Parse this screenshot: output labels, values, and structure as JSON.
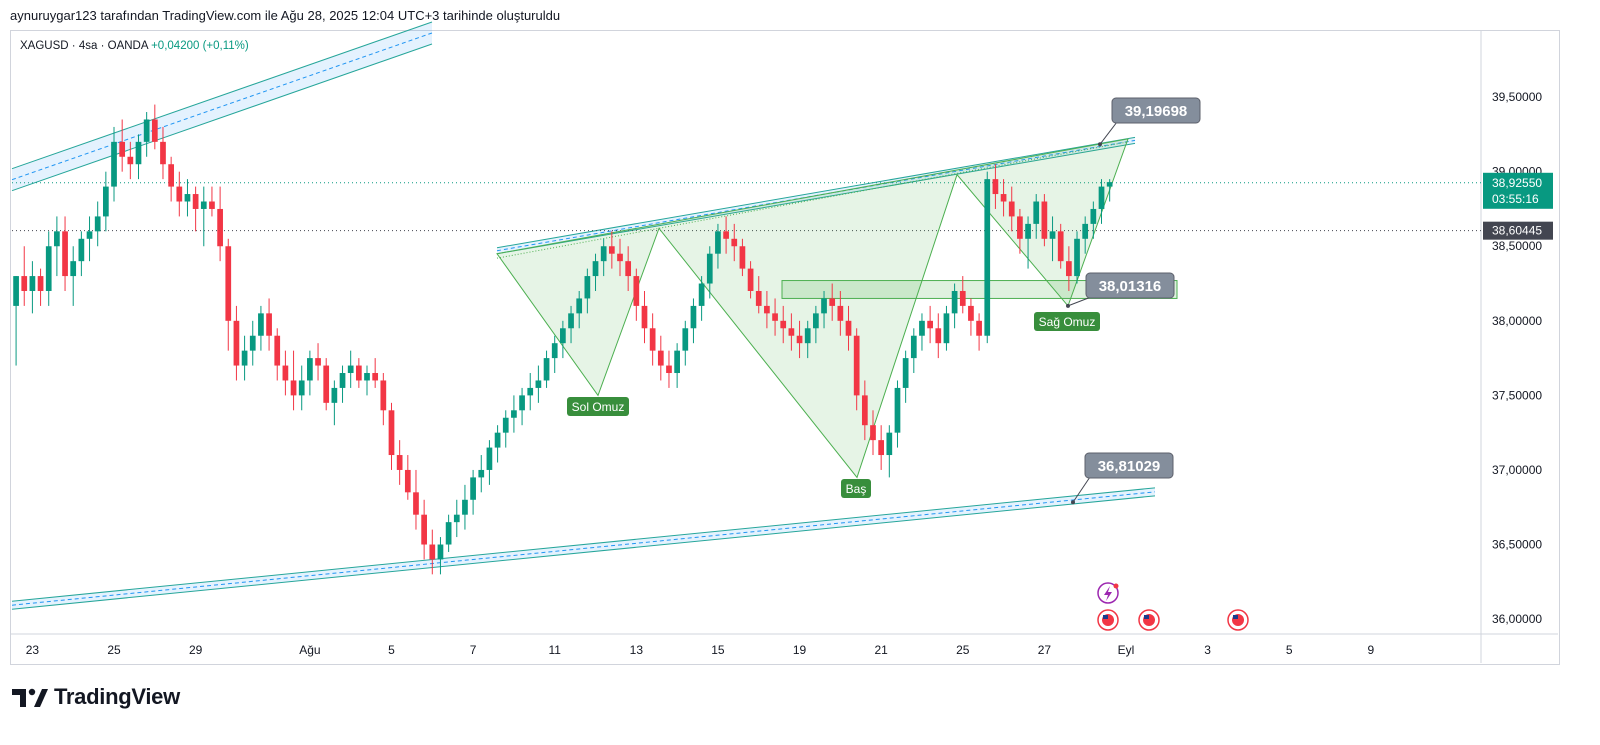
{
  "caption": "aynuruygar123 tarafından TradingView.com ile Ağu 28, 2025 12:04 UTC+3 tarihinde oluşturuldu",
  "symbol": {
    "name": "XAGUSD",
    "sep1": "·",
    "timeframe": "4sa",
    "sep2": "·",
    "broker": "OANDA",
    "change": "+0,04200 (+0,11%)"
  },
  "brand": {
    "name": "TradingView"
  },
  "colors": {
    "up": "#089981",
    "down": "#f23645",
    "pattern": "#4caf50",
    "channel": "#2196f3",
    "label": "#848e9c",
    "price_tag": "#089981"
  },
  "chart_data": {
    "type": "candlestick",
    "ylim": [
      35.9,
      39.95
    ],
    "y_ticks": [
      "36,00000",
      "36,50000",
      "37,00000",
      "37,50000",
      "38,00000",
      "38,50000",
      "39,00000",
      "39,50000"
    ],
    "y_tick_values": [
      36.0,
      36.5,
      37.0,
      37.5,
      38.0,
      38.5,
      39.0,
      39.5
    ],
    "x_ticks": [
      "23",
      "25",
      "29",
      "Ağu",
      "5",
      "7",
      "11",
      "13",
      "15",
      "19",
      "21",
      "25",
      "27",
      "Eyl",
      "3",
      "5",
      "9"
    ],
    "x_tick_index": [
      2,
      12,
      22,
      36,
      46,
      56,
      66,
      76,
      86,
      96,
      106,
      116,
      126,
      136,
      146,
      156,
      166
    ],
    "candle_count": 136,
    "candles": [
      [
        38.1,
        38.3,
        37.7,
        38.3
      ],
      [
        38.3,
        38.5,
        38.1,
        38.2
      ],
      [
        38.2,
        38.4,
        38.05,
        38.3
      ],
      [
        38.3,
        38.35,
        38.1,
        38.2
      ],
      [
        38.2,
        38.6,
        38.1,
        38.5
      ],
      [
        38.5,
        38.7,
        38.3,
        38.6
      ],
      [
        38.6,
        38.7,
        38.2,
        38.3
      ],
      [
        38.3,
        38.5,
        38.1,
        38.4
      ],
      [
        38.4,
        38.6,
        38.3,
        38.55
      ],
      [
        38.55,
        38.7,
        38.4,
        38.6
      ],
      [
        38.6,
        38.8,
        38.5,
        38.7
      ],
      [
        38.7,
        39.0,
        38.6,
        38.9
      ],
      [
        38.9,
        39.3,
        38.8,
        39.2
      ],
      [
        39.2,
        39.35,
        39.0,
        39.1
      ],
      [
        39.1,
        39.2,
        38.95,
        39.05
      ],
      [
        39.05,
        39.25,
        38.95,
        39.2
      ],
      [
        39.2,
        39.4,
        39.1,
        39.35
      ],
      [
        39.35,
        39.45,
        39.15,
        39.2
      ],
      [
        39.2,
        39.3,
        38.95,
        39.05
      ],
      [
        39.05,
        39.1,
        38.8,
        38.9
      ],
      [
        38.9,
        39.0,
        38.7,
        38.8
      ],
      [
        38.8,
        38.95,
        38.7,
        38.85
      ],
      [
        38.85,
        38.9,
        38.6,
        38.75
      ],
      [
        38.75,
        38.9,
        38.5,
        38.8
      ],
      [
        38.8,
        38.9,
        38.7,
        38.75
      ],
      [
        38.75,
        38.9,
        38.4,
        38.5
      ],
      [
        38.5,
        38.55,
        37.8,
        38.0
      ],
      [
        38.0,
        38.1,
        37.6,
        37.7
      ],
      [
        37.7,
        37.9,
        37.6,
        37.8
      ],
      [
        37.8,
        38.0,
        37.7,
        37.9
      ],
      [
        37.9,
        38.1,
        37.8,
        38.05
      ],
      [
        38.05,
        38.15,
        37.8,
        37.9
      ],
      [
        37.9,
        37.95,
        37.6,
        37.7
      ],
      [
        37.7,
        37.8,
        37.5,
        37.6
      ],
      [
        37.6,
        37.8,
        37.4,
        37.5
      ],
      [
        37.5,
        37.7,
        37.4,
        37.6
      ],
      [
        37.6,
        37.8,
        37.5,
        37.75
      ],
      [
        37.75,
        37.85,
        37.6,
        37.7
      ],
      [
        37.7,
        37.75,
        37.4,
        37.45
      ],
      [
        37.45,
        37.6,
        37.3,
        37.55
      ],
      [
        37.55,
        37.7,
        37.45,
        37.65
      ],
      [
        37.65,
        37.8,
        37.55,
        37.7
      ],
      [
        37.7,
        37.75,
        37.55,
        37.6
      ],
      [
        37.6,
        37.7,
        37.5,
        37.65
      ],
      [
        37.65,
        37.75,
        37.55,
        37.6
      ],
      [
        37.6,
        37.65,
        37.3,
        37.4
      ],
      [
        37.4,
        37.45,
        37.0,
        37.1
      ],
      [
        37.1,
        37.2,
        36.9,
        37.0
      ],
      [
        37.0,
        37.1,
        36.8,
        36.85
      ],
      [
        36.85,
        37.0,
        36.6,
        36.7
      ],
      [
        36.7,
        36.8,
        36.4,
        36.5
      ],
      [
        36.5,
        36.6,
        36.3,
        36.4
      ],
      [
        36.4,
        36.55,
        36.3,
        36.5
      ],
      [
        36.5,
        36.7,
        36.45,
        36.65
      ],
      [
        36.65,
        36.8,
        36.55,
        36.7
      ],
      [
        36.7,
        36.9,
        36.6,
        36.8
      ],
      [
        36.8,
        37.0,
        36.7,
        36.95
      ],
      [
        36.95,
        37.1,
        36.85,
        37.0
      ],
      [
        37.0,
        37.2,
        36.9,
        37.15
      ],
      [
        37.15,
        37.3,
        37.05,
        37.25
      ],
      [
        37.25,
        37.4,
        37.15,
        37.35
      ],
      [
        37.35,
        37.5,
        37.25,
        37.4
      ],
      [
        37.4,
        37.55,
        37.3,
        37.5
      ],
      [
        37.5,
        37.65,
        37.4,
        37.55
      ],
      [
        37.55,
        37.7,
        37.45,
        37.6
      ],
      [
        37.6,
        37.8,
        37.55,
        37.75
      ],
      [
        37.75,
        37.9,
        37.65,
        37.85
      ],
      [
        37.85,
        38.0,
        37.75,
        37.95
      ],
      [
        37.95,
        38.1,
        37.85,
        38.05
      ],
      [
        38.05,
        38.2,
        37.95,
        38.15
      ],
      [
        38.15,
        38.35,
        38.05,
        38.3
      ],
      [
        38.3,
        38.45,
        38.2,
        38.4
      ],
      [
        38.4,
        38.55,
        38.3,
        38.5
      ],
      [
        38.5,
        38.6,
        38.35,
        38.45
      ],
      [
        38.45,
        38.55,
        38.3,
        38.4
      ],
      [
        38.4,
        38.5,
        38.2,
        38.3
      ],
      [
        38.3,
        38.35,
        38.0,
        38.1
      ],
      [
        38.1,
        38.2,
        37.85,
        37.95
      ],
      [
        37.95,
        38.05,
        37.7,
        37.8
      ],
      [
        37.8,
        37.9,
        37.6,
        37.7
      ],
      [
        37.7,
        37.8,
        37.55,
        37.65
      ],
      [
        37.65,
        37.85,
        37.55,
        37.8
      ],
      [
        37.8,
        38.0,
        37.7,
        37.95
      ],
      [
        37.95,
        38.15,
        37.85,
        38.1
      ],
      [
        38.1,
        38.3,
        38.0,
        38.25
      ],
      [
        38.25,
        38.5,
        38.15,
        38.45
      ],
      [
        38.45,
        38.65,
        38.35,
        38.6
      ],
      [
        38.6,
        38.7,
        38.45,
        38.55
      ],
      [
        38.55,
        38.65,
        38.4,
        38.5
      ],
      [
        38.5,
        38.55,
        38.3,
        38.35
      ],
      [
        38.35,
        38.4,
        38.15,
        38.2
      ],
      [
        38.2,
        38.3,
        38.05,
        38.1
      ],
      [
        38.1,
        38.2,
        37.95,
        38.05
      ],
      [
        38.05,
        38.15,
        37.9,
        38.0
      ],
      [
        38.0,
        38.1,
        37.85,
        37.95
      ],
      [
        37.95,
        38.05,
        37.8,
        37.9
      ],
      [
        37.9,
        38.0,
        37.75,
        37.85
      ],
      [
        37.85,
        38.0,
        37.75,
        37.95
      ],
      [
        37.95,
        38.1,
        37.85,
        38.05
      ],
      [
        38.05,
        38.2,
        37.95,
        38.15
      ],
      [
        38.15,
        38.25,
        38.0,
        38.1
      ],
      [
        38.1,
        38.2,
        37.9,
        38.0
      ],
      [
        38.0,
        38.1,
        37.8,
        37.9
      ],
      [
        37.9,
        37.95,
        37.4,
        37.5
      ],
      [
        37.5,
        37.6,
        37.2,
        37.3
      ],
      [
        37.3,
        37.4,
        37.1,
        37.2
      ],
      [
        37.2,
        37.3,
        37.0,
        37.1
      ],
      [
        37.1,
        37.3,
        36.95,
        37.25
      ],
      [
        37.25,
        37.6,
        37.15,
        37.55
      ],
      [
        37.55,
        37.8,
        37.45,
        37.75
      ],
      [
        37.75,
        37.95,
        37.65,
        37.9
      ],
      [
        37.9,
        38.05,
        37.8,
        38.0
      ],
      [
        38.0,
        38.1,
        37.85,
        37.95
      ],
      [
        37.95,
        38.05,
        37.75,
        37.85
      ],
      [
        37.85,
        38.1,
        37.8,
        38.05
      ],
      [
        38.05,
        38.25,
        37.95,
        38.2
      ],
      [
        38.2,
        38.3,
        38.05,
        38.1
      ],
      [
        38.1,
        38.15,
        37.9,
        38.0
      ],
      [
        38.0,
        38.05,
        37.8,
        37.9
      ],
      [
        37.9,
        39.0,
        37.85,
        38.95
      ],
      [
        38.95,
        39.05,
        38.75,
        38.85
      ],
      [
        38.85,
        38.95,
        38.7,
        38.8
      ],
      [
        38.8,
        38.9,
        38.6,
        38.7
      ],
      [
        38.7,
        38.75,
        38.45,
        38.55
      ],
      [
        38.55,
        38.7,
        38.35,
        38.65
      ],
      [
        38.65,
        38.85,
        38.55,
        38.8
      ],
      [
        38.8,
        38.85,
        38.5,
        38.55
      ],
      [
        38.55,
        38.7,
        38.4,
        38.6
      ],
      [
        38.6,
        38.65,
        38.35,
        38.4
      ],
      [
        38.4,
        38.5,
        38.2,
        38.3
      ],
      [
        38.3,
        38.6,
        38.25,
        38.55
      ],
      [
        38.55,
        38.7,
        38.45,
        38.65
      ],
      [
        38.65,
        38.8,
        38.55,
        38.75
      ],
      [
        38.75,
        38.95,
        38.65,
        38.9
      ],
      [
        38.9,
        38.95,
        38.8,
        38.93
      ]
    ],
    "horizontal_lines": [
      {
        "value": 38.9255,
        "style": "dotted-green"
      },
      {
        "value": 38.60445,
        "style": "dotted-gray"
      }
    ],
    "price_tags": [
      {
        "label": "38,92550",
        "sub": "03:55:16",
        "value": 38.9255,
        "color": "#089981"
      },
      {
        "label": "38,60445",
        "value": 38.60445,
        "color": "#434651"
      }
    ],
    "annotations": [
      {
        "text": "39,19698",
        "value": 39.19698
      },
      {
        "text": "38,01316",
        "value": 38.01316
      },
      {
        "text": "36,81029",
        "value": 36.81029
      }
    ],
    "pattern_labels": [
      {
        "text": "Sol Omuz"
      },
      {
        "text": "Baş"
      },
      {
        "text": "Sağ Omuz"
      }
    ]
  }
}
